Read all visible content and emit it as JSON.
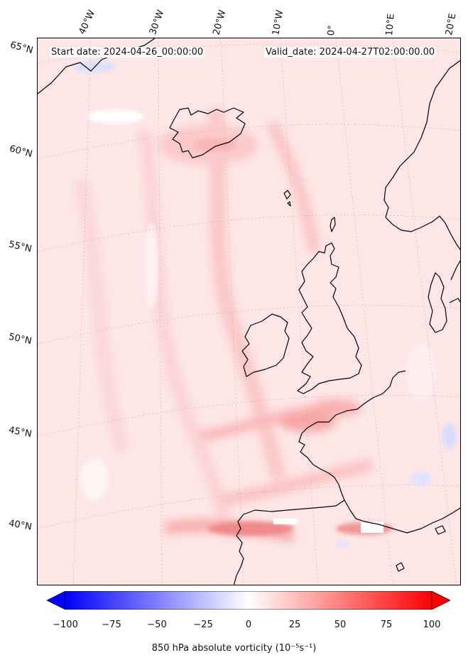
{
  "header": {
    "start_date": "Start date: 2024-04-26_00:00:00",
    "valid_date": "Valid_date: 2024-04-27T02:00:00.00"
  },
  "longitude_labels": [
    "40°W",
    "30°W",
    "20°W",
    "10°W",
    "0°",
    "10°E",
    "20°E"
  ],
  "latitude_labels": [
    "65°N",
    "60°N",
    "55°N",
    "50°N",
    "45°N",
    "40°N"
  ],
  "colorbar": {
    "ticks": [
      "−100",
      "−75",
      "−50",
      "−25",
      "0",
      "25",
      "50",
      "75",
      "100"
    ],
    "tick_values": [
      -100,
      -75,
      -50,
      -25,
      0,
      25,
      50,
      75,
      100
    ],
    "label": "850 hPa absolute vorticity (10⁻⁵s⁻¹)",
    "colormap": "bwr",
    "min_color": "#0000ff",
    "mid_color": "#ffffff",
    "max_color": "#ff0000"
  },
  "field": {
    "background_color": "#fde6e6",
    "dominant_sign": "positive"
  },
  "regions": [
    "Iceland",
    "Norway",
    "Ireland",
    "Great Britain",
    "France",
    "Iberia",
    "Denmark",
    "Faroe Islands",
    "Shetland"
  ]
}
